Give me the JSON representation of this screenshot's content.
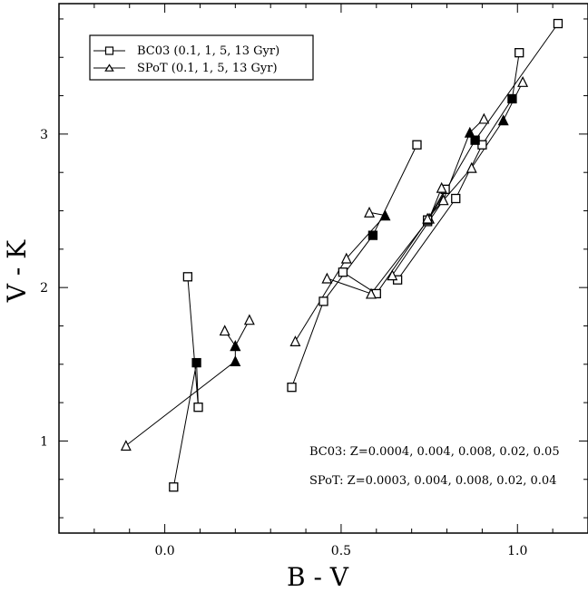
{
  "chart_data": {
    "type": "scatter",
    "xlabel": "B - V",
    "ylabel": "V - K",
    "xlim": [
      -0.3,
      1.2
    ],
    "ylim": [
      0.4,
      3.85
    ],
    "x_ticks": [
      {
        "value": 0.0,
        "label": "0.0"
      },
      {
        "value": 0.5,
        "label": "0.5"
      },
      {
        "value": 1.0,
        "label": "1.0"
      }
    ],
    "y_ticks": [
      {
        "value": 1,
        "label": "1"
      },
      {
        "value": 2,
        "label": "2"
      },
      {
        "value": 3,
        "label": "3"
      }
    ],
    "grid": false,
    "legend_position": "top-left",
    "legend": [
      {
        "marker": "square",
        "label": "BC03 (0.1, 1, 5, 13 Gyr)"
      },
      {
        "marker": "triangle",
        "label": "SPoT (0.1, 1, 5, 13 Gyr)"
      }
    ],
    "annotations": [
      "BC03: Z=0.0004, 0.004, 0.008, 0.02, 0.05",
      "SPoT: Z=0.0003, 0.004, 0.008, 0.02, 0.04"
    ],
    "series": [
      {
        "model": "BC03",
        "marker": "square",
        "metallicity_index": 1,
        "points": [
          [
            0.065,
            2.07
          ],
          [
            0.095,
            1.22
          ],
          [
            0.09,
            1.51
          ],
          [
            0.025,
            0.7
          ]
        ],
        "filled": [
          false,
          false,
          true,
          false
        ]
      },
      {
        "model": "SPoT",
        "marker": "triangle",
        "metallicity_index": 1,
        "points": [
          [
            0.24,
            1.79
          ],
          [
            0.2,
            1.62
          ],
          [
            0.2,
            1.52
          ],
          [
            -0.11,
            0.97
          ]
        ],
        "filled": [
          false,
          false,
          true,
          false
        ]
      },
      {
        "model": "SPoT",
        "marker": "triangle",
        "metallicity_index": 1,
        "points": [
          [
            0.17,
            1.72
          ],
          [
            0.2,
            1.62
          ]
        ],
        "filled": [
          false,
          true
        ]
      },
      {
        "model": "BC03",
        "marker": "square",
        "metallicity_index": 2,
        "points": [
          [
            0.715,
            2.93
          ],
          [
            0.59,
            2.34
          ],
          [
            0.45,
            1.91
          ],
          [
            0.36,
            1.35
          ]
        ],
        "filled": [
          false,
          true,
          false,
          false
        ]
      },
      {
        "model": "SPoT",
        "marker": "triangle",
        "metallicity_index": 2,
        "points": [
          [
            0.58,
            2.49
          ],
          [
            0.625,
            2.47
          ],
          [
            0.515,
            2.19
          ],
          [
            0.37,
            1.65
          ]
        ],
        "filled": [
          false,
          true,
          false,
          false
        ]
      },
      {
        "model": "BC03",
        "marker": "square",
        "metallicity_index": 3,
        "points": [
          [
            0.795,
            2.64
          ],
          [
            0.745,
            2.44
          ],
          [
            0.6,
            1.96
          ],
          [
            0.505,
            2.1
          ]
        ],
        "filled": [
          false,
          false,
          false,
          false
        ]
      },
      {
        "model": "SPoT",
        "marker": "triangle",
        "metallicity_index": 3,
        "points": [
          [
            0.785,
            2.65
          ],
          [
            0.75,
            2.45
          ],
          [
            0.585,
            1.96
          ],
          [
            0.46,
            2.06
          ]
        ],
        "filled": [
          false,
          false,
          false,
          false
        ]
      },
      {
        "model": "BC03",
        "marker": "square",
        "metallicity_index": 4,
        "points": [
          [
            1.005,
            3.53
          ],
          [
            0.985,
            3.23
          ],
          [
            0.9,
            2.93
          ],
          [
            0.825,
            2.58
          ],
          [
            0.66,
            2.05
          ]
        ],
        "filled": [
          false,
          true,
          false,
          false,
          false
        ]
      },
      {
        "model": "SPoT",
        "marker": "triangle",
        "metallicity_index": 4,
        "points": [
          [
            0.905,
            3.1
          ],
          [
            0.865,
            3.01
          ],
          [
            0.79,
            2.57
          ],
          [
            0.645,
            2.08
          ]
        ],
        "filled": [
          false,
          true,
          false,
          false
        ]
      },
      {
        "model": "BC03",
        "marker": "square",
        "metallicity_index": 5,
        "points": [
          [
            1.115,
            3.72
          ],
          [
            0.88,
            2.96
          ],
          [
            0.745,
            2.43
          ],
          [
            0.745,
            2.44
          ]
        ],
        "filled": [
          false,
          true,
          false,
          false
        ]
      },
      {
        "model": "SPoT",
        "marker": "triangle",
        "metallicity_index": 5,
        "points": [
          [
            1.015,
            3.34
          ],
          [
            0.96,
            3.09
          ],
          [
            0.87,
            2.78
          ],
          [
            0.745,
            2.45
          ]
        ],
        "filled": [
          false,
          true,
          false,
          false
        ]
      }
    ]
  }
}
